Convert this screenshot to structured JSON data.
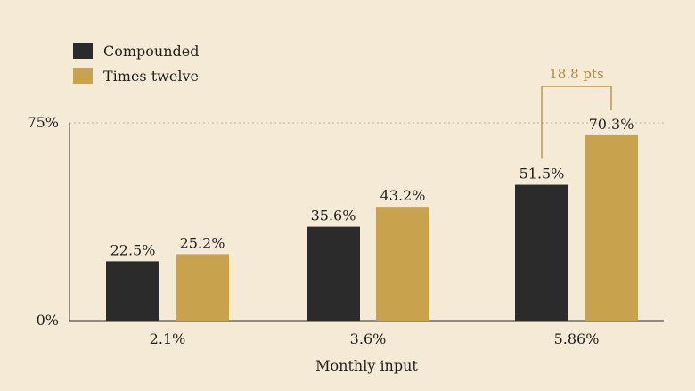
{
  "chart_data": {
    "type": "bar",
    "title": "",
    "xlabel": "Monthly input",
    "ylabel": "",
    "categories": [
      "2.1%",
      "3.6%",
      "5.86%"
    ],
    "series": [
      {
        "name": "Compounded",
        "values": [
          22.5,
          35.6,
          51.5
        ],
        "color": "#2b2b2b"
      },
      {
        "name": "Times twelve",
        "values": [
          25.2,
          43.2,
          70.3
        ],
        "color": "#c9a24e"
      }
    ],
    "value_labels": [
      [
        "22.5%",
        "35.6%",
        "51.5%"
      ],
      [
        "25.2%",
        "43.2%",
        "70.3%"
      ]
    ],
    "ylim": [
      0,
      75
    ],
    "yticks": [
      {
        "value": 0,
        "label": "0%"
      },
      {
        "value": 75,
        "label": "75%"
      }
    ],
    "reference_line": {
      "value": 75,
      "style": "dotted"
    },
    "legend_position": "top-left",
    "annotation": {
      "text": "18.8 pts",
      "category_index": 2,
      "color": "#b38a3a"
    },
    "grid": false
  }
}
